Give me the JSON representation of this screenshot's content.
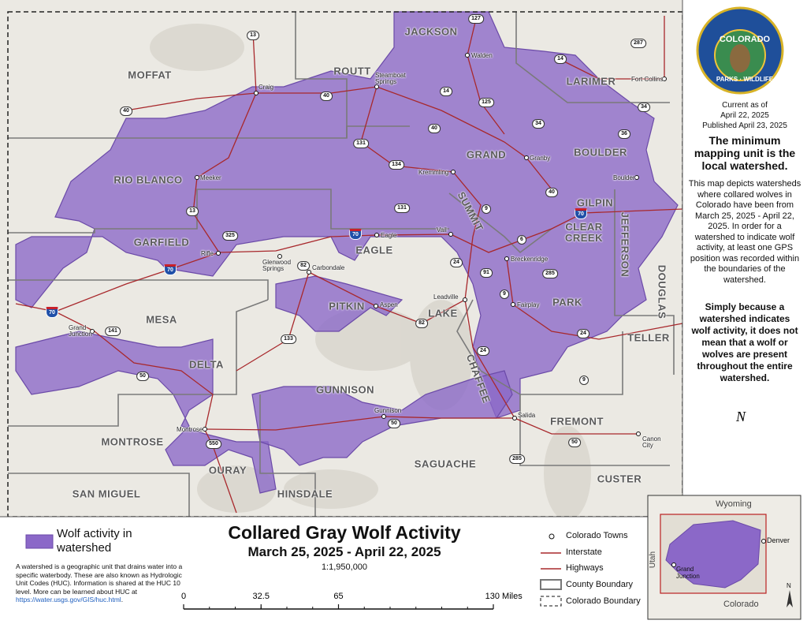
{
  "map": {
    "counties": [
      "MOFFAT",
      "ROUTT",
      "JACKSON",
      "LARIMER",
      "BOULDER",
      "GILPIN",
      "CLEAR CREEK",
      "JEFFERSON",
      "DOUGLAS",
      "RIO BLANCO",
      "GARFIELD",
      "EAGLE",
      "SUMMIT",
      "GRAND",
      "PITKIN",
      "LAKE",
      "PARK",
      "TELLER",
      "MESA",
      "DELTA",
      "GUNNISON",
      "CHAFFEE",
      "FREMONT",
      "MONTROSE",
      "SAGUACHE",
      "CUSTER",
      "SAN MIGUEL",
      "OURAY",
      "HINSDALE"
    ],
    "towns": [
      "Walden",
      "Fort Collins",
      "Craig",
      "Steamboat Springs",
      "Granby",
      "Boulder",
      "Meeker",
      "Kremmling",
      "Eagle",
      "Vail",
      "Rifle",
      "Glenwood Springs",
      "Carbondale",
      "Breckenridge",
      "Aspen",
      "Leadville",
      "Fairplay",
      "Grand Junction",
      "Gunnison",
      "Salida",
      "Montrose",
      "Canon City"
    ],
    "highways": [
      "13",
      "127",
      "287",
      "14",
      "40",
      "40",
      "14",
      "125",
      "34",
      "34",
      "36",
      "131",
      "134",
      "40",
      "9",
      "40",
      "13",
      "325",
      "131",
      "70",
      "70",
      "70",
      "70",
      "82",
      "24",
      "91",
      "6",
      "285",
      "9",
      "24",
      "141",
      "82",
      "133",
      "24",
      "50",
      "9",
      "550",
      "50",
      "285",
      "50"
    ],
    "compass": "N"
  },
  "side_panel": {
    "logo_top": "COLORADO",
    "logo_left": "PARKS",
    "logo_bottom": "WILDLIFE",
    "current_as_of": "Current as of",
    "current_date": "April 22, 2025",
    "published": "Published April 23, 2025",
    "heading": "The minimum mapping unit is the local watershed.",
    "description": "This map depicts watersheds where collared wolves in Colorado have been from March 25, 2025 - April 22, 2025. In order for a watershed to indicate wolf activity, at least one GPS position was recorded within the boundaries of the watershed.",
    "note": "Simply because a watershed indicates wolf activity, it does not mean that a wolf or wolves are present throughout the entire watershed."
  },
  "legend": {
    "swatch_label": "Wolf activity in watershed",
    "description": "A watershed is a geographic unit that drains water into a specific waterbody. These are also known as Hydrologic Unit Codes (HUC). Information is shared at the HUC 10 level. More can be learned about HUC at",
    "link": "https://water.usgs.gov/GIS/huc.html",
    "link_end": "."
  },
  "title": "Collared Gray Wolf Activity",
  "subtitle": "March 25, 2025 - April 22, 2025",
  "scale": "1:1,950,000",
  "scale_bar": {
    "range": [
      0,
      130
    ],
    "ticks": [
      0,
      32.5,
      65,
      {
        "value": 130,
        "label": "130 Miles"
      }
    ]
  },
  "key": [
    "Colorado Towns",
    "Interstate",
    "Highways",
    "County Boundary",
    "Colorado Boundary"
  ],
  "inset": {
    "wyoming": "Wyoming",
    "utah": "Utah",
    "denver": "Denver",
    "grand_junction": "Grand Junction",
    "colorado": "Colorado",
    "north": "N"
  }
}
